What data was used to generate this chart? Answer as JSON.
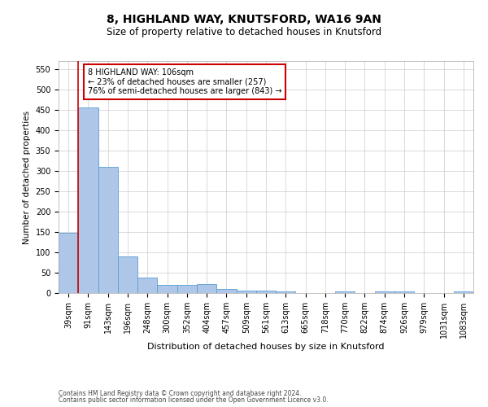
{
  "title1": "8, HIGHLAND WAY, KNUTSFORD, WA16 9AN",
  "title2": "Size of property relative to detached houses in Knutsford",
  "xlabel": "Distribution of detached houses by size in Knutsford",
  "ylabel": "Number of detached properties",
  "categories": [
    "39sqm",
    "91sqm",
    "143sqm",
    "196sqm",
    "248sqm",
    "300sqm",
    "352sqm",
    "404sqm",
    "457sqm",
    "509sqm",
    "561sqm",
    "613sqm",
    "665sqm",
    "718sqm",
    "770sqm",
    "822sqm",
    "874sqm",
    "926sqm",
    "979sqm",
    "1031sqm",
    "1083sqm"
  ],
  "values": [
    148,
    457,
    311,
    91,
    38,
    20,
    20,
    22,
    11,
    7,
    6,
    5,
    0,
    0,
    5,
    0,
    5,
    5,
    0,
    0,
    5
  ],
  "bar_color": "#aec6e8",
  "bar_edge_color": "#5a9fd4",
  "red_line_x": 1,
  "annotation_text": "8 HIGHLAND WAY: 106sqm\n← 23% of detached houses are smaller (257)\n76% of semi-detached houses are larger (843) →",
  "annotation_box_color": "#ffffff",
  "annotation_box_edge_color": "#cc0000",
  "ylim": [
    0,
    570
  ],
  "yticks": [
    0,
    50,
    100,
    150,
    200,
    250,
    300,
    350,
    400,
    450,
    500,
    550
  ],
  "footer1": "Contains HM Land Registry data © Crown copyright and database right 2024.",
  "footer2": "Contains public sector information licensed under the Open Government Licence v3.0.",
  "bg_color": "#ffffff",
  "grid_color": "#cccccc",
  "title1_fontsize": 10,
  "title2_fontsize": 8.5,
  "xlabel_fontsize": 8,
  "ylabel_fontsize": 7.5,
  "tick_fontsize": 7,
  "annotation_fontsize": 7,
  "footer_fontsize": 5.5
}
